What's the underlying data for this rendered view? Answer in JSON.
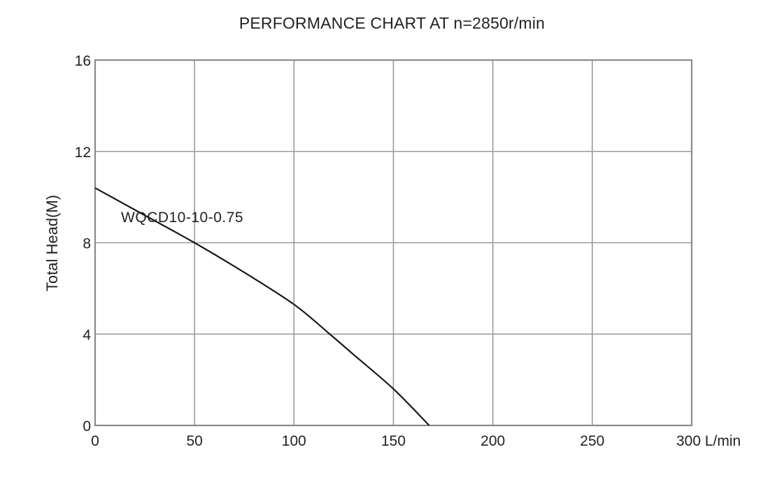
{
  "chart_data": {
    "type": "line",
    "title": "PERFORMANCE CHART AT n=2850r/min",
    "xlabel": "L/min",
    "ylabel": "Total Head(M)",
    "xlim": [
      0,
      300
    ],
    "ylim": [
      0,
      16
    ],
    "x_ticks": [
      0,
      50,
      100,
      150,
      200,
      250,
      300
    ],
    "x_tick_labels": [
      "0",
      "50",
      "100",
      "150",
      "200",
      "250",
      "300 L/min"
    ],
    "y_ticks": [
      0,
      4,
      8,
      12,
      16
    ],
    "y_tick_labels": [
      "0",
      "4",
      "8",
      "12",
      "16"
    ],
    "grid": true,
    "legend": "inline label near curve",
    "series": [
      {
        "name": "WQCD10-10-0.75",
        "x": [
          0,
          25,
          50,
          75,
          100,
          118,
          130,
          150,
          168
        ],
        "y": [
          10.4,
          9.2,
          8.0,
          6.7,
          5.3,
          4.0,
          3.1,
          1.6,
          0.0
        ]
      }
    ]
  },
  "colors": {
    "grid": "#9a9a9a",
    "curve": "#1a1a1a",
    "text": "#222222",
    "background": "#ffffff"
  }
}
